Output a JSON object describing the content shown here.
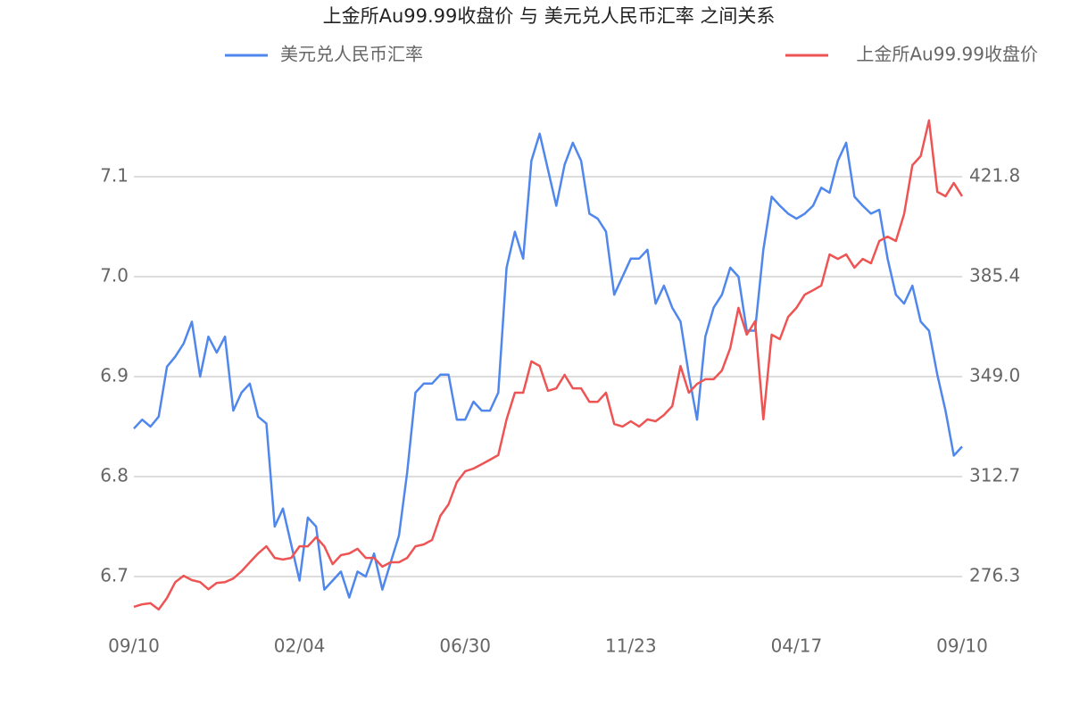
{
  "chart_data": {
    "type": "line",
    "title": "上金所Au99.99收盘价 与 美元兑人民币汇率 之间关系",
    "categories": [
      "09/10",
      null,
      null,
      null,
      null,
      null,
      null,
      null,
      null,
      null,
      null,
      null,
      null,
      null,
      null,
      null,
      null,
      null,
      null,
      null,
      "02/04",
      null,
      null,
      null,
      null,
      null,
      null,
      null,
      null,
      null,
      null,
      null,
      null,
      null,
      null,
      null,
      null,
      null,
      null,
      null,
      "06/30",
      null,
      null,
      null,
      null,
      null,
      null,
      null,
      null,
      null,
      null,
      null,
      null,
      null,
      null,
      null,
      null,
      null,
      null,
      null,
      "11/23",
      null,
      null,
      null,
      null,
      null,
      null,
      null,
      null,
      null,
      null,
      null,
      null,
      null,
      null,
      null,
      null,
      null,
      null,
      null,
      "04/17",
      null,
      null,
      null,
      null,
      null,
      null,
      null,
      null,
      null,
      null,
      null,
      null,
      null,
      null,
      null,
      null,
      null,
      null,
      null,
      "09/10"
    ],
    "series": [
      {
        "name": "美元兑人民币汇率",
        "color": "#5087ec",
        "axis": "y",
        "values": [
          6.848,
          6.857,
          6.85,
          6.86,
          6.91,
          6.92,
          6.933,
          6.955,
          6.9,
          6.94,
          6.924,
          6.94,
          6.866,
          6.884,
          6.893,
          6.86,
          6.853,
          6.75,
          6.768,
          6.732,
          6.696,
          6.759,
          6.75,
          6.687,
          6.696,
          6.705,
          6.679,
          6.705,
          6.7,
          6.723,
          6.687,
          6.714,
          6.741,
          6.804,
          6.884,
          6.893,
          6.893,
          6.902,
          6.902,
          6.857,
          6.857,
          6.875,
          6.866,
          6.866,
          6.884,
          7.009,
          7.045,
          7.018,
          7.116,
          7.143,
          7.107,
          7.071,
          7.112,
          7.134,
          7.116,
          7.063,
          7.058,
          7.045,
          6.982,
          7.0,
          7.018,
          7.018,
          7.027,
          6.973,
          6.991,
          6.969,
          6.955,
          6.902,
          6.857,
          6.94,
          6.969,
          6.982,
          7.009,
          7.0,
          6.946,
          6.946,
          7.027,
          7.08,
          7.071,
          7.063,
          7.058,
          7.063,
          7.071,
          7.089,
          7.084,
          7.116,
          7.134,
          7.08,
          7.071,
          7.063,
          7.067,
          7.018,
          6.982,
          6.973,
          6.991,
          6.955,
          6.946,
          6.902,
          6.866,
          6.821,
          6.83
        ]
      },
      {
        "name": "上金所Au99.99收盘价",
        "color": "#ee5454",
        "axis": "y2",
        "values": [
          265.3,
          266.2,
          266.6,
          264.3,
          268.5,
          274.3,
          276.6,
          275.0,
          274.3,
          271.7,
          274.0,
          274.3,
          275.6,
          278.2,
          281.5,
          284.7,
          287.3,
          283.1,
          282.5,
          283.1,
          287.3,
          287.3,
          290.6,
          287.3,
          280.8,
          284.1,
          284.7,
          286.4,
          283.1,
          283.1,
          279.9,
          281.5,
          281.5,
          283.1,
          287.3,
          288.0,
          289.6,
          298.4,
          302.6,
          310.7,
          314.6,
          315.6,
          317.2,
          318.8,
          320.5,
          333.5,
          343.2,
          343.2,
          354.6,
          352.9,
          343.9,
          344.8,
          349.7,
          344.8,
          344.8,
          339.9,
          339.9,
          343.2,
          331.8,
          330.9,
          332.8,
          330.9,
          333.5,
          332.8,
          335.1,
          338.3,
          352.9,
          343.2,
          346.4,
          348.1,
          348.1,
          351.3,
          359.4,
          374.1,
          364.3,
          369.2,
          333.5,
          364.3,
          362.7,
          370.8,
          374.1,
          378.9,
          380.5,
          382.2,
          393.5,
          391.9,
          393.5,
          388.7,
          391.9,
          390.3,
          398.4,
          400.0,
          398.4,
          408.2,
          426.0,
          429.3,
          442.3,
          416.3,
          414.7,
          419.5,
          414.7
        ]
      }
    ],
    "ylim": [
      6.66,
      7.18
    ],
    "yticks": [
      6.7,
      6.8,
      6.9,
      {
        "value": 7,
        "label": "7.0"
      },
      7.1
    ],
    "y2lim": [
      261.75,
      450.9
    ],
    "y2ticks": [
      276.3,
      312.7,
      {
        "value": 349,
        "label": "349.0"
      },
      385.4,
      421.8
    ],
    "grid": true
  }
}
